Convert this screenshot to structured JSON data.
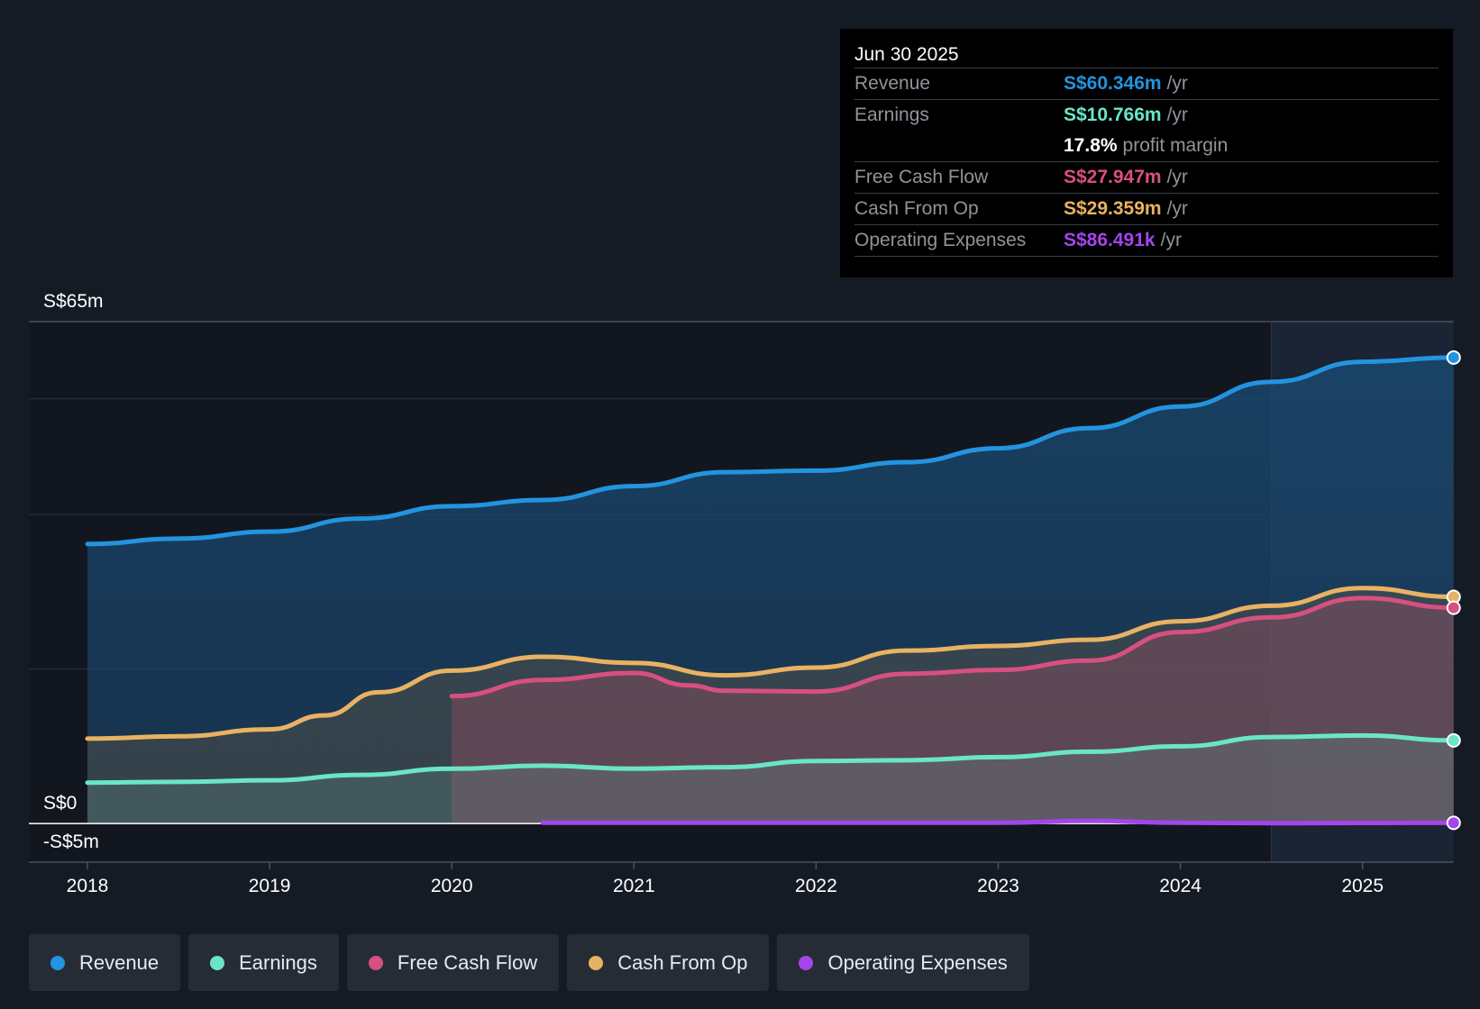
{
  "tooltip": {
    "date": "Jun 30 2025",
    "rows": [
      {
        "label": "Revenue",
        "value": "S$60.346m",
        "unit": "/yr",
        "color": "#2394df"
      },
      {
        "label": "Earnings",
        "value": "S$10.766m",
        "unit": "/yr",
        "color": "#6ae5c8"
      },
      {
        "label": "",
        "value": "17.8%",
        "unit": "profit margin",
        "color": "#ffffff"
      },
      {
        "label": "Free Cash Flow",
        "value": "S$27.947m",
        "unit": "/yr",
        "color": "#d7507f"
      },
      {
        "label": "Cash From Op",
        "value": "S$29.359m",
        "unit": "/yr",
        "color": "#e9b262"
      },
      {
        "label": "Operating Expenses",
        "value": "S$86.491k",
        "unit": "/yr",
        "color": "#a445ea"
      }
    ]
  },
  "legend": [
    {
      "label": "Revenue",
      "color": "#2394df"
    },
    {
      "label": "Earnings",
      "color": "#6ae5c8"
    },
    {
      "label": "Free Cash Flow",
      "color": "#d7507f"
    },
    {
      "label": "Cash From Op",
      "color": "#e9b262"
    },
    {
      "label": "Operating Expenses",
      "color": "#a445ea"
    }
  ],
  "chart_data": {
    "type": "area",
    "ylim": [
      -5,
      65
    ],
    "y_tick_labels": [
      {
        "value": 65,
        "label": "S$65m"
      },
      {
        "value": 0,
        "label": "S$0"
      },
      {
        "value": -5,
        "label": "-S$5m"
      }
    ],
    "x_ticks": [
      2018,
      2019,
      2020,
      2021,
      2022,
      2023,
      2024,
      2025
    ],
    "xlim": [
      2017.68,
      2025.5
    ],
    "highlight_start": 2024.5,
    "grid": true,
    "series": [
      {
        "name": "Revenue",
        "color": "#2394df",
        "x": [
          2018,
          2018.5,
          2019,
          2019.5,
          2020,
          2020.5,
          2021,
          2021.5,
          2022,
          2022.5,
          2023,
          2023.5,
          2024,
          2024.5,
          2025,
          2025.5
        ],
        "y": [
          36.2,
          36.9,
          37.8,
          39.5,
          41.1,
          41.9,
          43.7,
          45.5,
          45.7,
          46.8,
          48.6,
          51.2,
          54,
          57.2,
          59.8,
          60.346
        ]
      },
      {
        "name": "Cash From Op",
        "color": "#e9b262",
        "x": [
          2018,
          2018.5,
          2019,
          2019.3,
          2019.6,
          2020,
          2020.5,
          2021,
          2021.5,
          2022,
          2022.5,
          2023,
          2023.5,
          2024,
          2024.5,
          2025,
          2025.5
        ],
        "y": [
          11,
          11.3,
          12.2,
          14,
          17,
          19.8,
          21.6,
          20.8,
          19.2,
          20.2,
          22.4,
          23,
          23.8,
          26.2,
          28.2,
          30.5,
          29.359
        ]
      },
      {
        "name": "Free Cash Flow",
        "color": "#d7507f",
        "x": [
          2020,
          2020.5,
          2021,
          2021.3,
          2021.5,
          2022,
          2022.5,
          2023,
          2023.5,
          2024,
          2024.5,
          2025,
          2025.5
        ],
        "y": [
          16.5,
          18.6,
          19.5,
          17.9,
          17.2,
          17.1,
          19.4,
          19.9,
          21.1,
          24.8,
          26.7,
          29.2,
          27.947
        ]
      },
      {
        "name": "Earnings",
        "color": "#6ae5c8",
        "x": [
          2018,
          2018.5,
          2019,
          2019.5,
          2020,
          2020.5,
          2021,
          2021.5,
          2022,
          2022.5,
          2023,
          2023.5,
          2024,
          2024.5,
          2025,
          2025.5
        ],
        "y": [
          5.3,
          5.4,
          5.6,
          6.3,
          7.1,
          7.5,
          7.1,
          7.3,
          8.1,
          8.2,
          8.6,
          9.3,
          10,
          11.2,
          11.4,
          10.766
        ]
      },
      {
        "name": "Operating Expenses",
        "color": "#a445ea",
        "x": [
          2020.5,
          2021,
          2022,
          2023,
          2023.5,
          2024,
          2024.5,
          2025,
          2025.5
        ],
        "y": [
          0.1,
          0.1,
          0.1,
          0.1,
          0.35,
          0.1,
          0.05,
          0.08,
          0.086
        ]
      }
    ]
  }
}
